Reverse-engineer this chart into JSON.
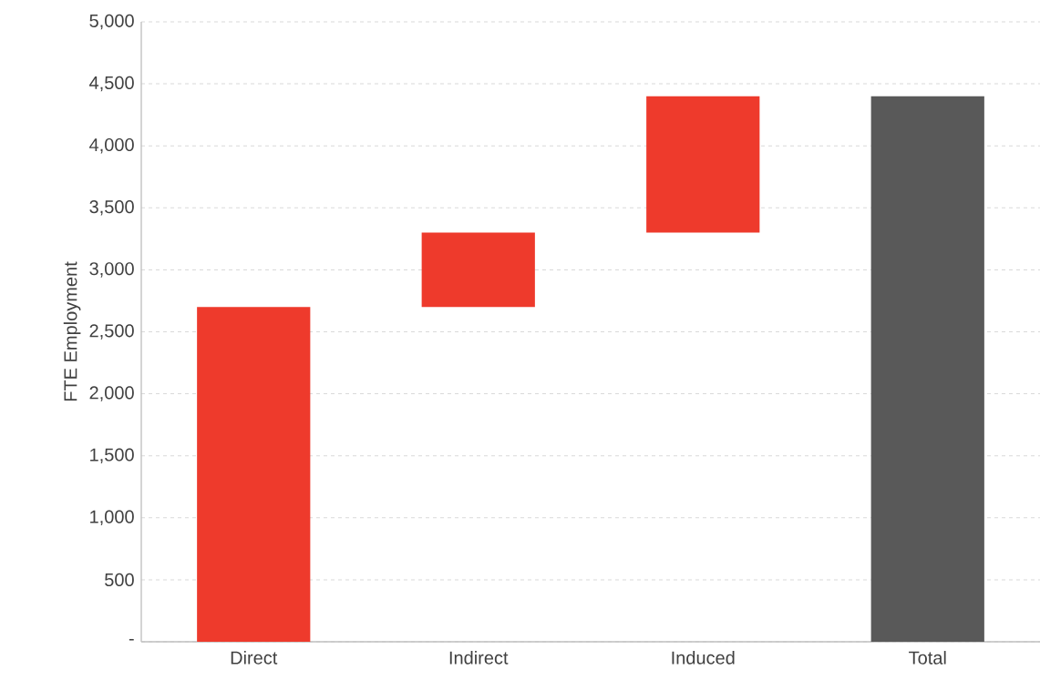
{
  "chart_data": {
    "type": "bar",
    "ylabel": "FTE Employment",
    "categories": [
      "Direct",
      "Indirect",
      "Induced",
      "Total"
    ],
    "values": [
      2700,
      600,
      1100,
      4400
    ],
    "base": [
      0,
      2700,
      3300,
      0
    ],
    "colors": [
      "#ee3a2c",
      "#ee3a2c",
      "#ee3a2c",
      "#595959"
    ],
    "ylim": [
      0,
      5000
    ],
    "yticks": [
      {
        "value": 0,
        "label": "-"
      },
      500,
      {
        "value": 1000,
        "label": "1,000"
      },
      {
        "value": 1500,
        "label": "1,500"
      },
      {
        "value": 2000,
        "label": "2,000"
      },
      {
        "value": 2500,
        "label": "2,500"
      },
      {
        "value": 3000,
        "label": "3,000"
      },
      {
        "value": 3500,
        "label": "3,500"
      },
      {
        "value": 4000,
        "label": "4,000"
      },
      {
        "value": 4500,
        "label": "4,500"
      },
      {
        "value": 5000,
        "label": "5,000"
      }
    ],
    "grid": "y"
  }
}
